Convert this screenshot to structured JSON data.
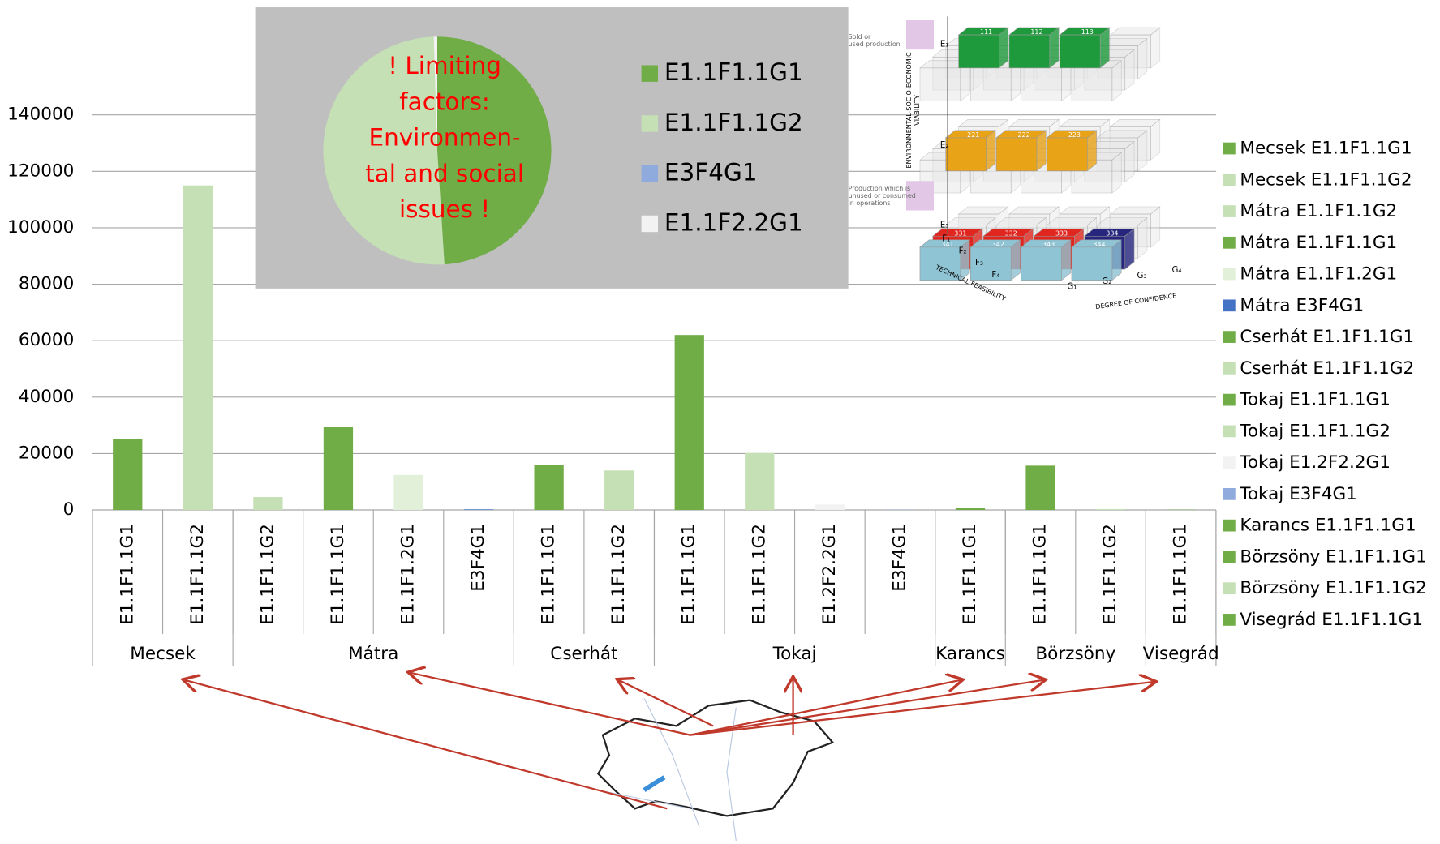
{
  "chart_data": [
    {
      "type": "bar",
      "categories": [
        "E1.1F1.1G1",
        "E1.1F1.1G2",
        "E1.1F1.1G2",
        "E1.1F1.1G1",
        "E1.1F1.2G1",
        "E3F4G1",
        "E1.1F1.1G1",
        "E1.1F1.1G2",
        "E1.1F1.1G1",
        "E1.1F1.1G2",
        "E1.2F2.2G1",
        "E3F4G1",
        "E1.1F1.1G1",
        "E1.1F1.1G1",
        "E1.1F1.1G2",
        "E1.1F1.1G1"
      ],
      "groups": [
        {
          "label": "Mecsek",
          "span": 2
        },
        {
          "label": "Mátra",
          "span": 4
        },
        {
          "label": "Cserhát",
          "span": 2
        },
        {
          "label": "Tokaj",
          "span": 4
        },
        {
          "label": "Karancs",
          "span": 1
        },
        {
          "label": "Börzsöny",
          "span": 2
        },
        {
          "label": "Visegrád",
          "span": 1
        }
      ],
      "values": [
        25000,
        115000,
        4600,
        29300,
        12400,
        200,
        16000,
        14000,
        62000,
        20200,
        1900,
        100,
        700,
        15700,
        300,
        100
      ],
      "colors": [
        "#70ad47",
        "#c5e0b4",
        "#c5e0b4",
        "#70ad47",
        "#e2f0d9",
        "#4472c4",
        "#70ad47",
        "#c5e0b4",
        "#70ad47",
        "#c5e0b4",
        "#f2f2f2",
        "#8faadc",
        "#70ad47",
        "#70ad47",
        "#c5e0b4",
        "#70ad47"
      ],
      "legend": [
        "Mecsek E1.1F1.1G1",
        "Mecsek E1.1F1.1G2",
        "Mátra E1.1F1.1G2",
        "Mátra E1.1F1.1G1",
        "Mátra E1.1F1.2G1",
        "Mátra E3F4G1",
        "Cserhát E1.1F1.1G1",
        "Cserhát E1.1F1.1G2",
        "Tokaj E1.1F1.1G1",
        "Tokaj E1.1F1.1G2",
        "Tokaj E1.2F2.2G1",
        "Tokaj E3F4G1",
        "Karancs E1.1F1.1G1",
        "Börzsöny  E1.1F1.1G1",
        "Börzsöny  E1.1F1.1G2",
        "Visegrád E1.1F1.1G1"
      ],
      "ylim": [
        0,
        140000
      ],
      "yticks": [
        0,
        20000,
        40000,
        60000,
        80000,
        100000,
        120000,
        140000
      ],
      "grid": true
    },
    {
      "type": "pie",
      "categories": [
        "E1.1F1.1G1",
        "E1.1F1.1G2",
        "E3F4G1",
        "E1.1F2.2G1"
      ],
      "values": [
        49,
        50.5,
        0,
        0.5
      ],
      "colors": [
        "#70ad47",
        "#c5e0b4",
        "#8faadc",
        "#f2f2f2"
      ],
      "annotation": [
        "! Limiting",
        "factors:",
        "Environmen-",
        "tal and social",
        "issues !"
      ]
    }
  ],
  "diagram": {
    "notes": [
      [
        "Sold or",
        "used production"
      ],
      [
        "Production which is",
        "unused or consumed",
        "in operations"
      ]
    ],
    "axis_titles": [
      "ENVIRONMENTAL-SOCIO-ECONOMIC",
      "VIABILITY",
      "TECHNICAL FEASIBILITY",
      "DEGREE OF CONFIDENCE"
    ],
    "e_labels": [
      "E₁",
      "E₂",
      "E₃"
    ],
    "f_labels": [
      "F₁",
      "F₂",
      "F₃",
      "F₄"
    ],
    "g_labels": [
      "G₁",
      "G₂",
      "G₃",
      "G₄"
    ],
    "blocks": [
      {
        "label": "111",
        "color": "#1e9a3c"
      },
      {
        "label": "112",
        "color": "#1e9a3c"
      },
      {
        "label": "113",
        "color": "#1e9a3c"
      },
      {
        "label": "221",
        "color": "#e8a317"
      },
      {
        "label": "222",
        "color": "#e8a317"
      },
      {
        "label": "223",
        "color": "#e8a317"
      },
      {
        "label": "331",
        "color": "#e0261f"
      },
      {
        "label": "332",
        "color": "#e0261f"
      },
      {
        "label": "333",
        "color": "#e0261f"
      },
      {
        "label": "334",
        "color": "#26267e"
      },
      {
        "label": "341",
        "color": "#8fc4d4"
      },
      {
        "label": "342",
        "color": "#8fc4d4"
      },
      {
        "label": "343",
        "color": "#8fc4d4"
      },
      {
        "label": "344",
        "color": "#8fc4d4"
      }
    ]
  }
}
